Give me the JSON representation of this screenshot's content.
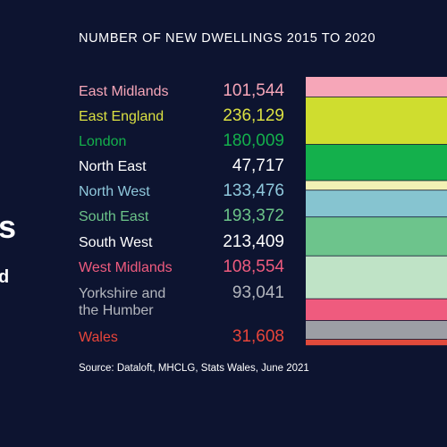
{
  "side": {
    "big": "s",
    "small": "d"
  },
  "chart_data": {
    "type": "bar",
    "orientation": "stacked-vertical",
    "title": "NUMBER OF NEW DWELLINGS 2015 TO 2020",
    "categories": [
      "East Midlands",
      "East England",
      "London",
      "North East",
      "North West",
      "South East",
      "South West",
      "West Midlands",
      "Yorkshire and\nthe Humber",
      "Wales"
    ],
    "values": [
      101544,
      236129,
      180009,
      47717,
      133476,
      193372,
      213409,
      108554,
      93041,
      31608
    ],
    "value_labels": [
      "101,544",
      "236,129",
      "180,009",
      "47,717",
      "133,476",
      "193,372",
      "213,409",
      "108,554",
      "93,041",
      "31,608"
    ],
    "colors": [
      "#f6a6b8",
      "#dbe042",
      "#14b04c",
      "#ffffff",
      "#8fc8dc",
      "#6cc489",
      "#ffffff",
      "#ef5b7e",
      "#b3b6bd",
      "#e8453a"
    ],
    "segment_colors": [
      "#f6a6b8",
      "#cfdd2f",
      "#14b04c",
      "#f2f1b4",
      "#86c4d0",
      "#6dc48c",
      "#bfe3c6",
      "#ef5b7e",
      "#9c9ea5",
      "#e14a3b"
    ],
    "source": "Source: Dataloft, MHCLG, Stats Wales, June 2021"
  }
}
